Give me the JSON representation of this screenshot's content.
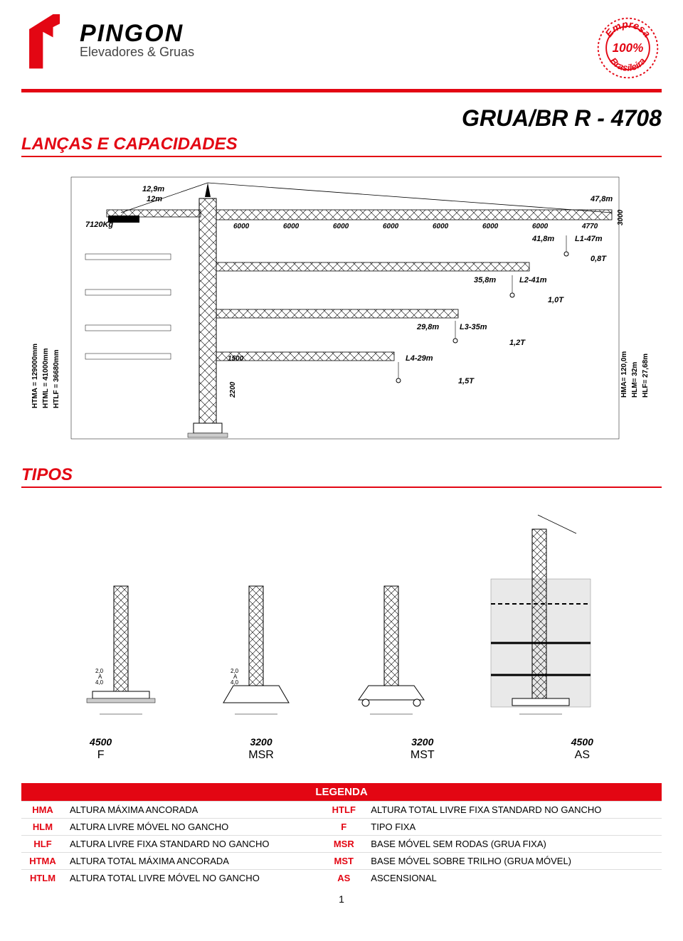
{
  "brand": {
    "name": "PINGON",
    "subtitle": "Elevadores & Gruas"
  },
  "stamp": {
    "line1": "Empresa",
    "line2": "100%",
    "line3": "Brasileira",
    "color": "#e30613"
  },
  "model_title": "GRUA/BR R - 4708",
  "section1": "LANÇAS E CAPACIDADES",
  "section2": "TIPOS",
  "crane": {
    "counter_top": "12,9m",
    "counter_bot": "12m",
    "counter_weight": "7120Kg",
    "jib_top_reach": "47,8m",
    "spans": [
      "6000",
      "6000",
      "6000",
      "6000",
      "6000",
      "6000",
      "6000",
      "4770"
    ],
    "right_ht": "3000",
    "l1": {
      "reach": "41,8m",
      "name": "L1-47m",
      "cap": "0,8T"
    },
    "l2": {
      "reach": "35,8m",
      "name": "L2-41m",
      "cap": "1,0T"
    },
    "l3": {
      "reach": "29,8m",
      "name": "L3-35m",
      "cap": "1,2T"
    },
    "l4": {
      "reach": "",
      "name": "L4-29m",
      "cap": "1,5T"
    },
    "base_main": "1500",
    "base_v": "2200",
    "left_labels": [
      "HTMA = 129000mm",
      "HTML = 41000mm",
      "HTLF = 36680mm"
    ],
    "right_labels": [
      "HMA= 120,0m",
      "HLM= 32m",
      "HLF= 27,68m"
    ]
  },
  "tipos": [
    {
      "dim": "4500",
      "code": "F"
    },
    {
      "dim": "3200",
      "code": "MSR"
    },
    {
      "dim": "3200",
      "code": "MST"
    },
    {
      "dim": "4500",
      "code": "AS"
    }
  ],
  "legend": {
    "title": "LEGENDA",
    "rows": [
      {
        "c1": "HMA",
        "d1": "ALTURA MÁXIMA ANCORADA",
        "c2": "HTLF",
        "d2": "ALTURA TOTAL LIVRE FIXA STANDARD NO GANCHO"
      },
      {
        "c1": "HLM",
        "d1": "ALTURA LIVRE MÓVEL NO GANCHO",
        "c2": "F",
        "d2": "TIPO FIXA"
      },
      {
        "c1": "HLF",
        "d1": "ALTURA LIVRE FIXA STANDARD NO GANCHO",
        "c2": "MSR",
        "d2": "BASE MÓVEL SEM RODAS (GRUA FIXA)"
      },
      {
        "c1": "HTMA",
        "d1": "ALTURA TOTAL MÁXIMA ANCORADA",
        "c2": "MST",
        "d2": "BASE MÓVEL SOBRE TRILHO (GRUA MÓVEL)"
      },
      {
        "c1": "HTLM",
        "d1": "ALTURA TOTAL LIVRE MÓVEL NO GANCHO",
        "c2": "AS",
        "d2": "ASCENSIONAL"
      }
    ]
  },
  "page_number": "1",
  "colors": {
    "red": "#e30613",
    "black": "#000000",
    "grey": "#888888"
  }
}
